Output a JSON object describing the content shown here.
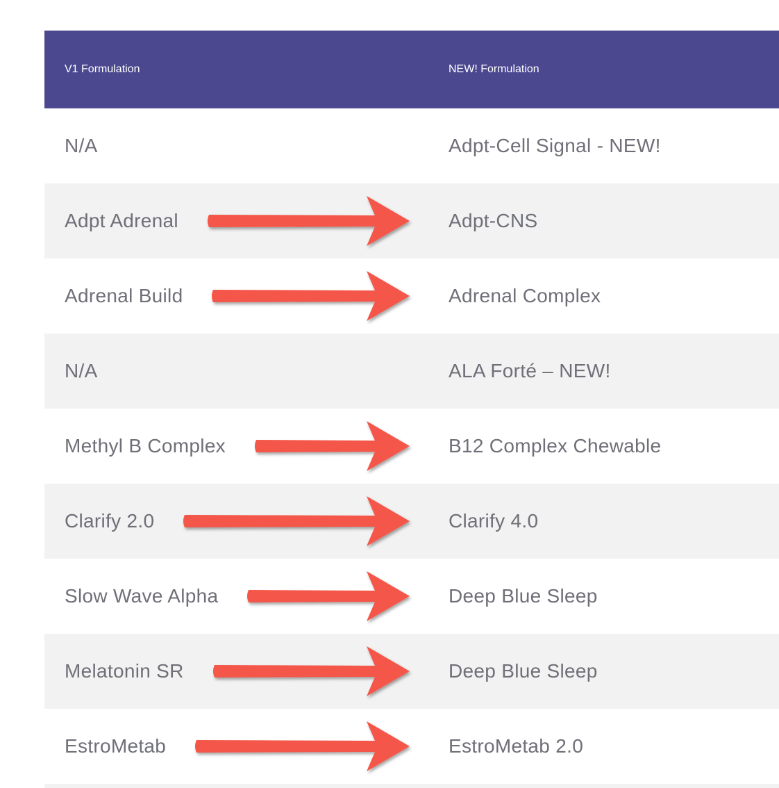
{
  "colors": {
    "header_bg": "#4b4890",
    "row_odd_bg": "#ffffff",
    "row_even_bg": "#f2f2f2",
    "arrow": "#f4574a",
    "text": "#6f6f78",
    "header_text": "#ffffff"
  },
  "table": {
    "headers": {
      "left": "V1 Formulation",
      "right": "NEW! Formulation"
    },
    "rows": [
      {
        "left": "N/A",
        "right": "Adpt-Cell Signal - NEW!",
        "arrow": false
      },
      {
        "left": "Adpt Adrenal",
        "right": "Adpt-CNS",
        "arrow": true
      },
      {
        "left": "Adrenal Build",
        "right": "Adrenal Complex",
        "arrow": true
      },
      {
        "left": "N/A",
        "right": "ALA Forté – NEW!",
        "arrow": false
      },
      {
        "left": "Methyl B Complex",
        "right": "B12 Complex Chewable",
        "arrow": true
      },
      {
        "left": "Clarify 2.0",
        "right": "Clarify 4.0",
        "arrow": true
      },
      {
        "left": "Slow Wave Alpha",
        "right": "Deep Blue Sleep",
        "arrow": true
      },
      {
        "left": "Melatonin SR",
        "right": "Deep Blue Sleep",
        "arrow": true
      },
      {
        "left": "EstroMetab",
        "right": "EstroMetab 2.0",
        "arrow": true
      }
    ]
  },
  "icons": {
    "mapping_arrow": "right-arrow-icon"
  }
}
